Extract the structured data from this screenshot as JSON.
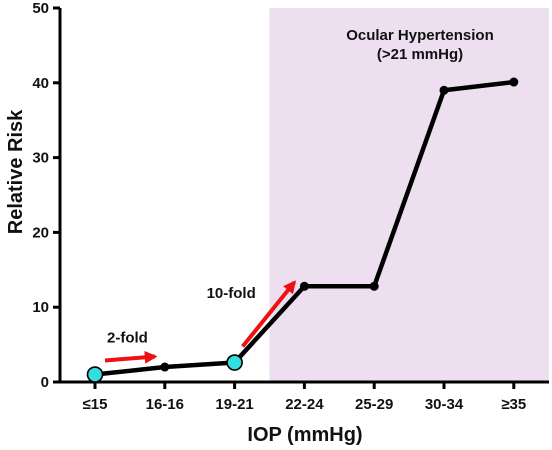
{
  "chart_data": {
    "type": "line",
    "categories": [
      "≤15",
      "16-16",
      "19-21",
      "22-24",
      "25-29",
      "30-34",
      "≥35"
    ],
    "values": [
      1,
      2,
      2.6,
      12.8,
      12.8,
      39,
      40.1
    ],
    "highlighted_points": [
      "≤15",
      "19-21"
    ],
    "xlabel": "IOP (mmHg)",
    "ylabel": "Relative Risk",
    "ylim": [
      0,
      50
    ],
    "yticks": [
      0,
      10,
      20,
      30,
      40,
      50
    ],
    "grid": false,
    "shaded_region": {
      "from_category": "22-24",
      "to_category": "≥35",
      "label_line1": "Ocular Hypertension",
      "label_line2": "(>21 mmHg)",
      "color": "#eddff0"
    },
    "annotations": [
      {
        "text": "2-fold",
        "from_category": "≤15",
        "to_category": "16-16"
      },
      {
        "text": "10-fold",
        "from_category": "19-21",
        "to_category": "22-24"
      }
    ],
    "colors": {
      "line": "#000000",
      "marker": "#000000",
      "highlight_marker": "#33dde0",
      "arrow": "#ee1111"
    }
  }
}
